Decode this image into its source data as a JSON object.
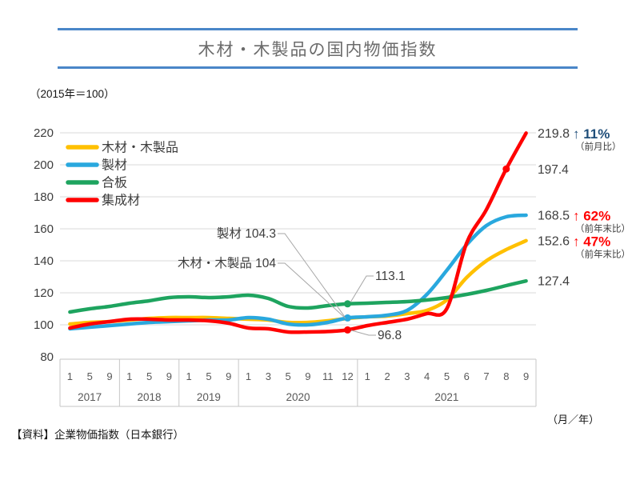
{
  "title": "木材・木製品の国内物価指数",
  "subtitle": "（2015年＝100）",
  "source_note": "【資料】企業物価指数（日本銀行）",
  "axis_unit_note": "（月／年）",
  "colors": {
    "accent_rule": "#4a86c8",
    "wood_products": "#ffc000",
    "sawn_timber": "#29a8de",
    "plywood": "#1ea45f",
    "glulam": "#ff0000",
    "increase_mom_text": "#1f4e79",
    "increase_yoy_text": "#ff0000",
    "grid": "#d9d9d9",
    "axis_box": "#c6c6c6",
    "axis_text": "#595959",
    "label_text": "#3d3d3d",
    "leader": "#a6a6a6"
  },
  "chart_data": {
    "type": "line",
    "title": "木材・木製品の国内物価指数",
    "subtitle": "（2015年＝100）",
    "ylim": [
      80,
      220
    ],
    "y_ticks": [
      80,
      100,
      120,
      140,
      160,
      180,
      200,
      220
    ],
    "grid": true,
    "legend_position": "top-left",
    "x_groups": [
      {
        "year": "2017",
        "months": [
          "1",
          "5",
          "9"
        ]
      },
      {
        "year": "2018",
        "months": [
          "1",
          "5",
          "9"
        ]
      },
      {
        "year": "2019",
        "months": [
          "1",
          "5",
          "9"
        ]
      },
      {
        "year": "2020",
        "months": [
          "1",
          "3",
          "5",
          "9",
          "11",
          "12"
        ]
      },
      {
        "year": "2021",
        "months": [
          "1",
          "2",
          "3",
          "4",
          "5",
          "6",
          "7",
          "8",
          "9"
        ]
      }
    ],
    "categories": [
      "2017-1",
      "2017-5",
      "2017-9",
      "2018-1",
      "2018-5",
      "2018-9",
      "2019-1",
      "2019-5",
      "2019-9",
      "2020-1",
      "2020-3",
      "2020-5",
      "2020-9",
      "2020-11",
      "2020-12",
      "2021-1",
      "2021-2",
      "2021-3",
      "2021-4",
      "2021-5",
      "2021-6",
      "2021-7",
      "2021-8",
      "2021-9"
    ],
    "series": [
      {
        "name": "木材・木製品",
        "color_key": "wood_products",
        "values": [
          100.5,
          101.5,
          102,
          103,
          104,
          104.5,
          104.5,
          104.5,
          104,
          103.5,
          103,
          101.5,
          101.5,
          102.5,
          104,
          105,
          105.5,
          107,
          109,
          115.5,
          129.5,
          140,
          147,
          152.6
        ]
      },
      {
        "name": "製材",
        "color_key": "sawn_timber",
        "values": [
          97.5,
          98.5,
          99.5,
          100.5,
          101.5,
          102,
          102.5,
          103,
          103,
          104.5,
          103.5,
          100.5,
          100,
          101.5,
          104.3,
          105,
          106,
          109,
          119,
          134,
          150,
          162,
          167.5,
          168.5
        ]
      },
      {
        "name": "合板",
        "color_key": "plywood",
        "values": [
          108,
          110,
          111.5,
          113.5,
          115,
          117,
          117.5,
          117,
          117.5,
          118.5,
          116.5,
          111.5,
          110.5,
          112,
          113.1,
          113.5,
          114,
          114.5,
          115.5,
          117,
          119,
          121.5,
          124.5,
          127.4
        ]
      },
      {
        "name": "集成材",
        "color_key": "glulam",
        "values": [
          98,
          100.5,
          102,
          103.5,
          103.5,
          103,
          103,
          102.5,
          101,
          98,
          97.5,
          95.5,
          95.5,
          95.8,
          96.8,
          99.5,
          101.5,
          103.5,
          107,
          110,
          151,
          172,
          197.4,
          219.8
        ]
      }
    ],
    "point_labels": [
      {
        "text": "製材 104.3",
        "series": "製材",
        "category": "2020-12",
        "marker": true
      },
      {
        "text": "木材・木製品 104",
        "series": "木材・木製品",
        "category": "2020-12",
        "marker": false
      },
      {
        "text": "113.1",
        "series": "合板",
        "category": "2020-12",
        "marker": true
      },
      {
        "text": "96.8",
        "series": "集成材",
        "category": "2020-12",
        "marker": true
      },
      {
        "text": "197.4",
        "series": "集成材",
        "category": "2021-8",
        "marker": true
      }
    ],
    "end_labels": [
      {
        "series": "集成材",
        "value_text": "219.8",
        "change_text": "↑ 11%",
        "change_note": "（前月比）",
        "change_color_key": "increase_mom_text"
      },
      {
        "series": "製材",
        "value_text": "168.5",
        "change_text": "↑ 62%",
        "change_note": "（前年末比）",
        "change_color_key": "increase_yoy_text"
      },
      {
        "series": "木材・木製品",
        "value_text": "152.6",
        "change_text": "↑ 47%",
        "change_note": "（前年末比）",
        "change_color_key": "increase_yoy_text"
      },
      {
        "series": "合板",
        "value_text": "127.4",
        "change_text": "",
        "change_note": "",
        "change_color_key": ""
      }
    ]
  }
}
